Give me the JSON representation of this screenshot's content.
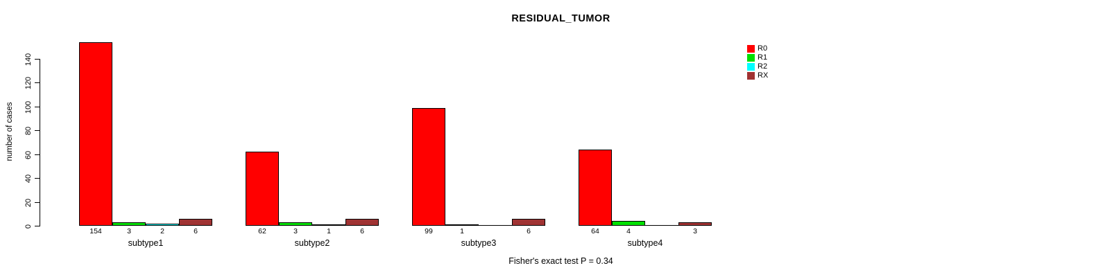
{
  "chart_data": {
    "type": "bar",
    "title": "RESIDUAL_TUMOR",
    "ylabel": "number of cases",
    "xlabel": "",
    "categories": [
      "subtype1",
      "subtype2",
      "subtype3",
      "subtype4"
    ],
    "series": [
      {
        "name": "R0",
        "color": "#ff0000",
        "values": [
          154,
          62,
          99,
          64
        ]
      },
      {
        "name": "R1",
        "color": "#00e000",
        "values": [
          3,
          3,
          1,
          4
        ]
      },
      {
        "name": "R2",
        "color": "#00ffff",
        "values": [
          2,
          1,
          0,
          0
        ]
      },
      {
        "name": "RX",
        "color": "#a03333",
        "values": [
          6,
          6,
          6,
          3
        ]
      }
    ],
    "bar_value_labels": [
      [
        "154",
        "3",
        "2",
        "6"
      ],
      [
        "62",
        "3",
        "1",
        "6"
      ],
      [
        "99",
        "1",
        "",
        "6"
      ],
      [
        "64",
        "4",
        "",
        "3"
      ]
    ],
    "ylim": [
      0,
      140
    ],
    "y_ticks": [
      0,
      20,
      40,
      60,
      80,
      100,
      120,
      140
    ],
    "grid": false,
    "legend_position": "right-inside",
    "legend_entries": [
      "R0",
      "R1",
      "R2",
      "RX"
    ],
    "annotation": "Fisher's exact test P = 0.34",
    "axis_color": "#000000",
    "background_color": "#ffffff"
  }
}
